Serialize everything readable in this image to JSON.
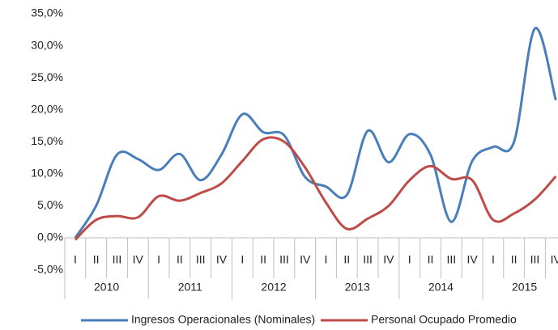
{
  "chart_data": {
    "type": "line",
    "categories": [
      "I",
      "II",
      "III",
      "IV",
      "I",
      "II",
      "III",
      "IV",
      "I",
      "II",
      "III",
      "IV",
      "I",
      "II",
      "III",
      "IV",
      "I",
      "II",
      "III",
      "IV",
      "I",
      "II",
      "III",
      "IV"
    ],
    "years": [
      "2010",
      "2011",
      "2012",
      "2013",
      "2014",
      "2015"
    ],
    "series": [
      {
        "name": "Ingresos Operacionales (Nominales)",
        "color": "#4a7ebb",
        "values": [
          0,
          5,
          13,
          12.3,
          10.6,
          13.1,
          9,
          13,
          19.3,
          16.5,
          16,
          9.5,
          8,
          6.7,
          16.7,
          11.8,
          16.2,
          13,
          2.5,
          12,
          14.2,
          15,
          32.7,
          21.5
        ]
      },
      {
        "name": "Personal Ocupado Promedio",
        "color": "#be4b48",
        "values": [
          -0.3,
          2.8,
          3.4,
          3.2,
          6.5,
          5.8,
          7,
          8.5,
          12,
          15.4,
          15,
          11,
          5.5,
          1.4,
          3,
          5,
          9,
          11.2,
          9.2,
          9,
          2.8,
          3.8,
          6,
          9.6
        ]
      }
    ],
    "ylim": [
      -5,
      35
    ],
    "yticks": [
      {
        "value": -5,
        "label": "-5,0%"
      },
      {
        "value": 0,
        "label": "0,0%"
      },
      {
        "value": 5,
        "label": "5,0%"
      },
      {
        "value": 10,
        "label": "10,0%"
      },
      {
        "value": 15,
        "label": "15,0%"
      },
      {
        "value": 20,
        "label": "20,0%"
      },
      {
        "value": 25,
        "label": "25,0%"
      },
      {
        "value": 30,
        "label": "30,0%"
      },
      {
        "value": 35,
        "label": "35,0%"
      }
    ],
    "grid": false,
    "legend": "bottom"
  }
}
